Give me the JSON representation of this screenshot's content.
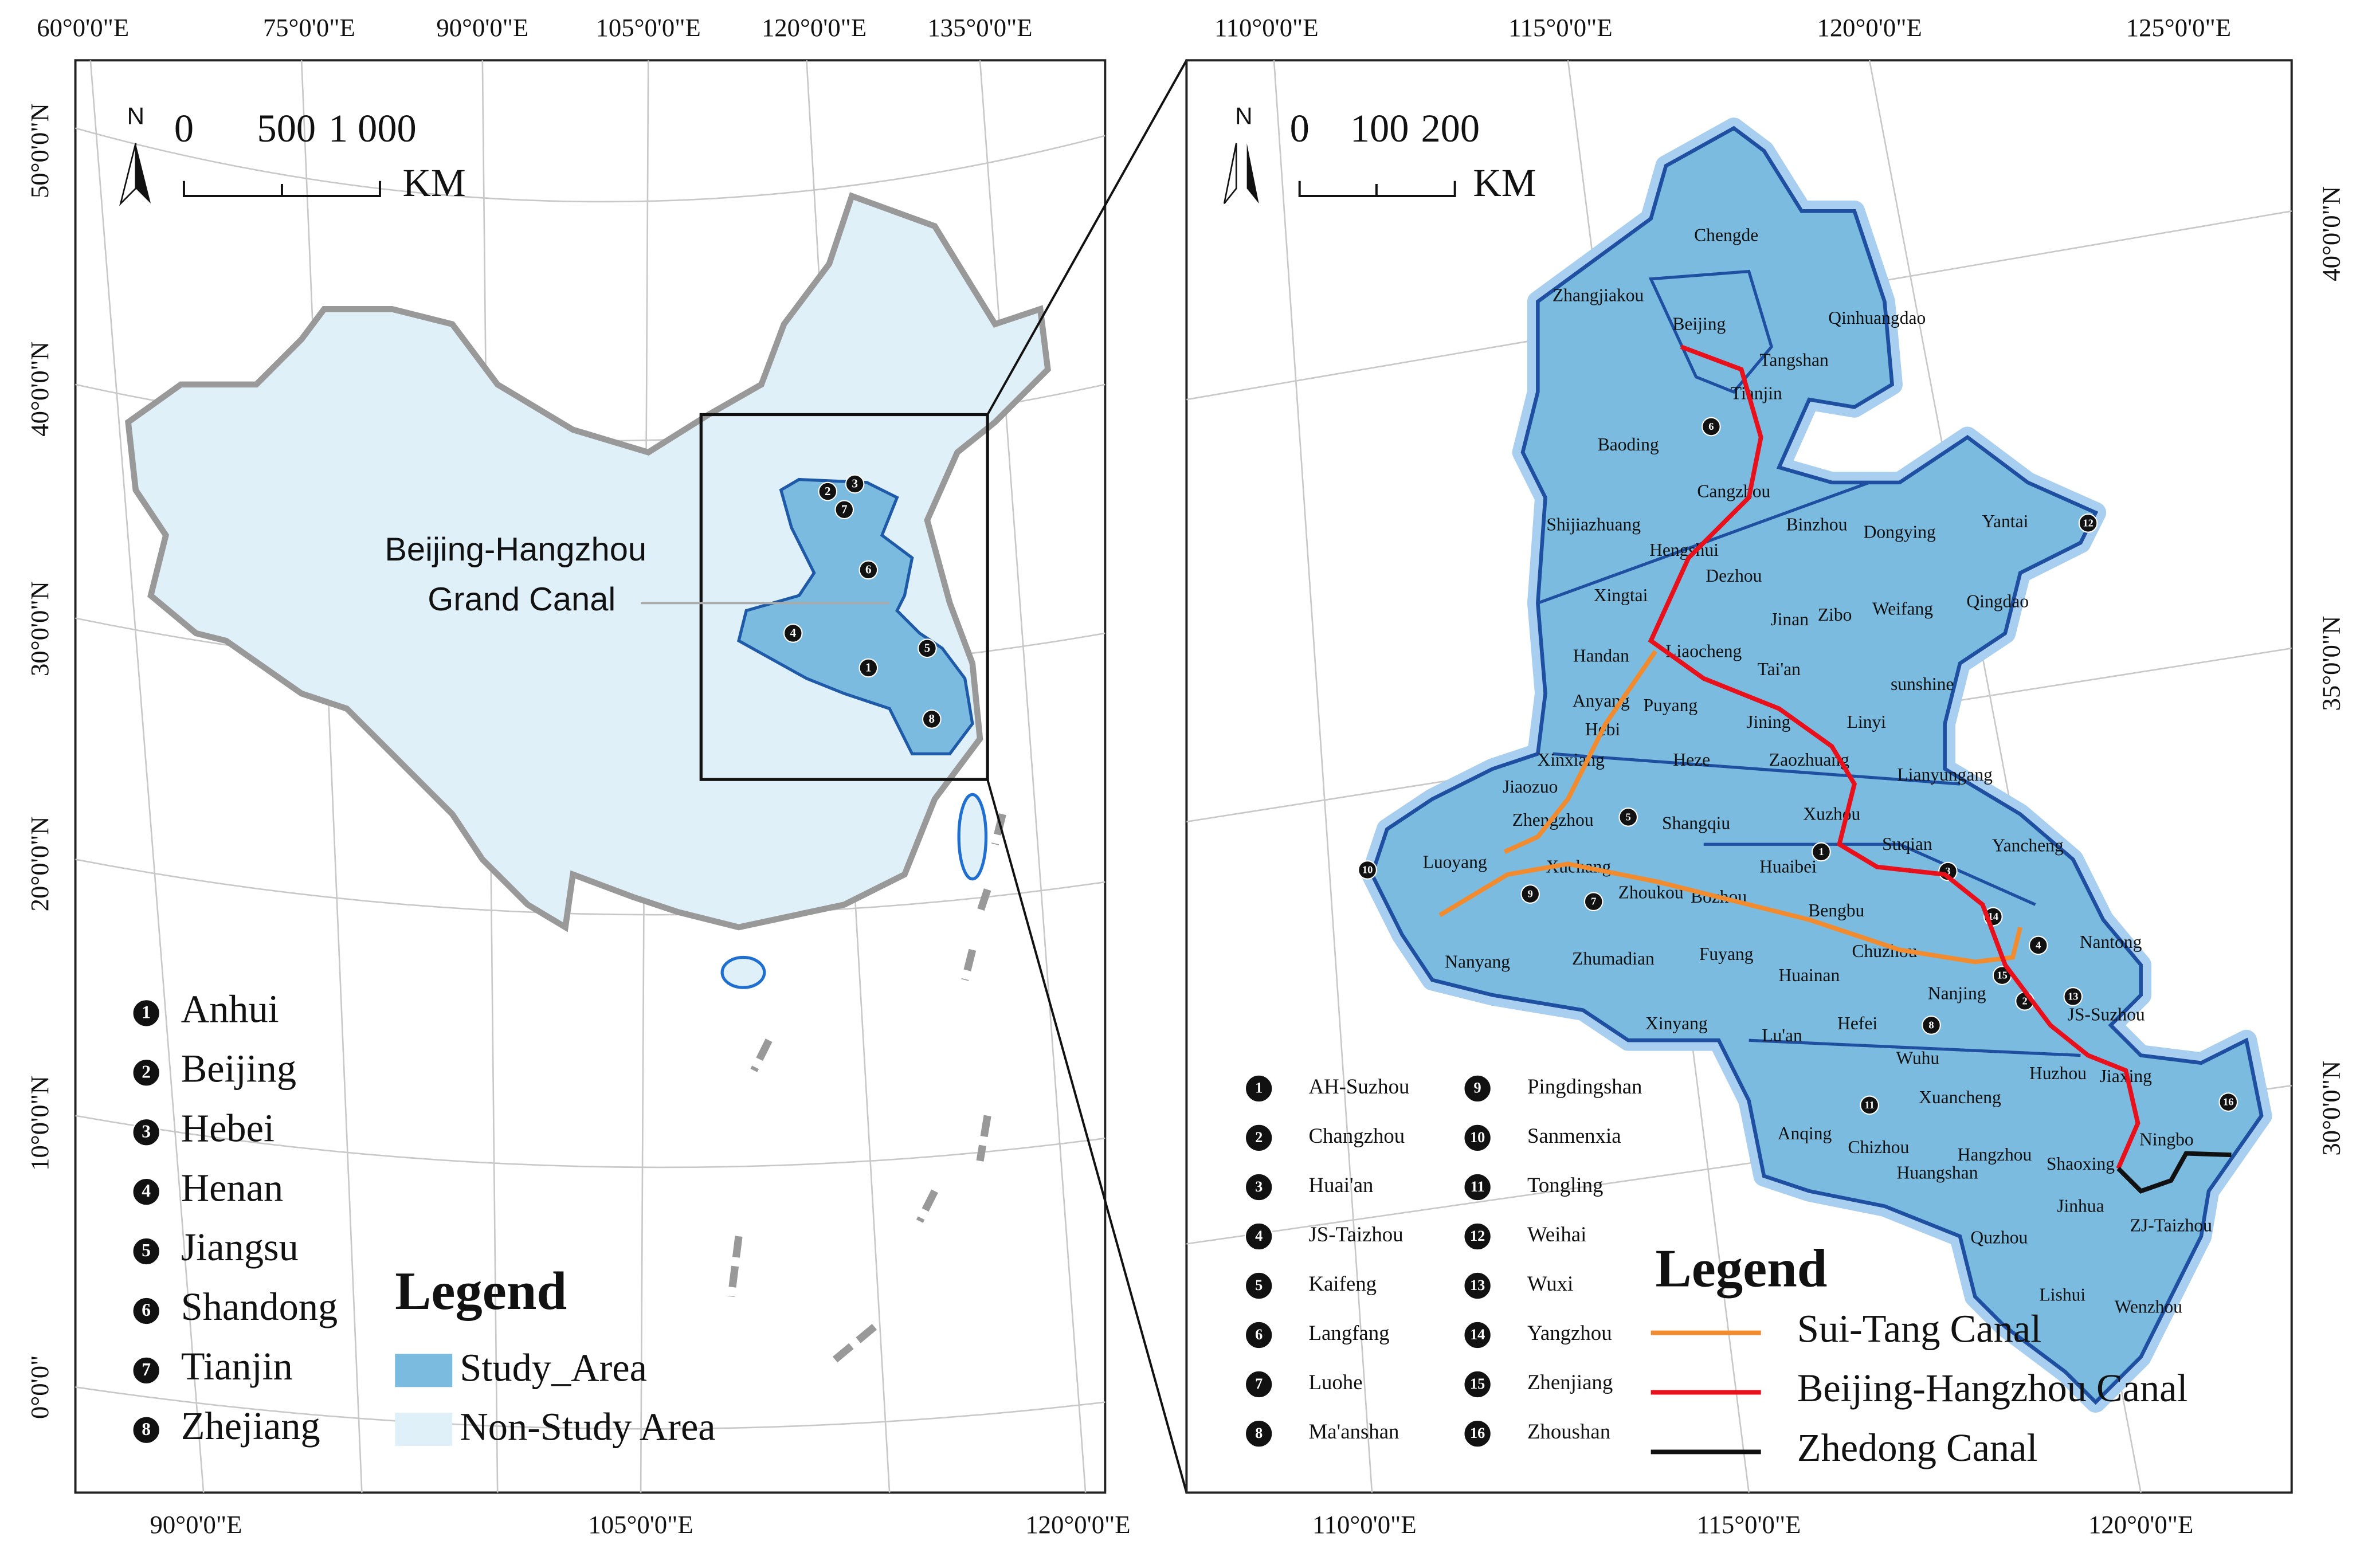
{
  "left_map": {
    "top_labels": [
      "60°0'0\"E",
      "75°0'0\"E",
      "90°0'0\"E",
      "105°0'0\"E",
      "120°0'0\"E",
      "135°0'0\"E"
    ],
    "bottom_labels": [
      "90°0'0\"E",
      "105°0'0\"E",
      "120°0'0\"E"
    ],
    "side_labels": [
      "50°0'0\"N",
      "40°0'0\"N",
      "30°0'0\"N",
      "20°0'0\"N",
      "10°0'0\"N",
      "0°0'0\""
    ],
    "north": "N",
    "scale_bar": {
      "ticks": [
        "0",
        "500",
        "1 000"
      ],
      "unit": "KM"
    },
    "annotation": [
      "Beijing-Hangzhou",
      "Grand Canal"
    ],
    "provinces": [
      {
        "number": "1",
        "name": "Anhui"
      },
      {
        "number": "2",
        "name": "Beijing"
      },
      {
        "number": "3",
        "name": "Hebei"
      },
      {
        "number": "4",
        "name": "Henan"
      },
      {
        "number": "5",
        "name": "Jiangsu"
      },
      {
        "number": "6",
        "name": "Shandong"
      },
      {
        "number": "7",
        "name": "Tianjin"
      },
      {
        "number": "8",
        "name": "Zhejiang"
      }
    ],
    "legend": {
      "title": "Legend",
      "items": [
        {
          "name": "Study_Area",
          "color": "#7bbbe0"
        },
        {
          "name": "Non-Study Area",
          "color": "#dff0f9"
        }
      ]
    }
  },
  "right_map": {
    "top_labels": [
      "110°0'0\"E",
      "115°0'0\"E",
      "120°0'0\"E",
      "125°0'0\"E"
    ],
    "bottom_labels": [
      "110°0'0\"E",
      "115°0'0\"E",
      "120°0'0\"E"
    ],
    "side_labels": [
      "40°0'0\"N",
      "35°0'0\"N",
      "30°0'0\"N"
    ],
    "north": "N",
    "scale_bar": {
      "ticks": [
        "0",
        "100",
        "200"
      ],
      "unit": "KM"
    },
    "cities": [
      "Chengde",
      "Zhangjiakou",
      "Beijing",
      "Qinhuangdao",
      "Tangshan",
      "Tianjin",
      "Baoding",
      "Cangzhou",
      "Shijiazhuang",
      "Binzhou",
      "Dongying",
      "Yantai",
      "Hengshui",
      "Dezhou",
      "Xingtai",
      "Jinan",
      "Zibo",
      "Weifang",
      "Qingdao",
      "Handan",
      "Liaocheng",
      "Tai'an",
      "sunshine",
      "Anyang",
      "Puyang",
      "Hebi",
      "Jining",
      "Linyi",
      "Xinxiang",
      "Heze",
      "Zaozhuang",
      "Lianyungang",
      "Jiaozuo",
      "Zhengzhou",
      "Shangqiu",
      "Xuzhou",
      "Suqian",
      "Yancheng",
      "Luoyang",
      "Xuchang",
      "Huaibei",
      "Zhoukou",
      "Bozhou",
      "Bengbu",
      "Nantong",
      "Nanyang",
      "Zhumadian",
      "Fuyang",
      "Chuzhou",
      "Huainan",
      "Nanjing",
      "JS-Suzhou",
      "Xinyang",
      "Lu'an",
      "Hefei",
      "Wuhu",
      "Huzhou",
      "Jiaxing",
      "Xuancheng",
      "Anqing",
      "Ningbo",
      "Chizhou",
      "Hangzhou",
      "Shaoxing",
      "Huangshan",
      "Jinhua",
      "ZJ-Taizhou",
      "Quzhou",
      "Lishui",
      "Wenzhou"
    ],
    "numbered_cities": [
      {
        "number": "1",
        "name": "AH-Suzhou"
      },
      {
        "number": "2",
        "name": "Changzhou"
      },
      {
        "number": "3",
        "name": "Huai'an"
      },
      {
        "number": "4",
        "name": "JS-Taizhou"
      },
      {
        "number": "5",
        "name": "Kaifeng"
      },
      {
        "number": "6",
        "name": "Langfang"
      },
      {
        "number": "7",
        "name": "Luohe"
      },
      {
        "number": "8",
        "name": "Ma'anshan"
      },
      {
        "number": "9",
        "name": "Pingdingshan"
      },
      {
        "number": "10",
        "name": "Sanmenxia"
      },
      {
        "number": "11",
        "name": "Tongling"
      },
      {
        "number": "12",
        "name": "Weihai"
      },
      {
        "number": "13",
        "name": "Wuxi"
      },
      {
        "number": "14",
        "name": "Yangzhou"
      },
      {
        "number": "15",
        "name": "Zhenjiang"
      },
      {
        "number": "16",
        "name": "Zhoushan"
      }
    ],
    "legend": {
      "title": "Legend",
      "items": [
        {
          "name": "Sui-Tang Canal",
          "color": "#f28a2e"
        },
        {
          "name": "Beijing-Hangzhou Canal",
          "color": "#e8101a"
        },
        {
          "name": "Zhedong Canal",
          "color": "#111111"
        }
      ]
    }
  }
}
